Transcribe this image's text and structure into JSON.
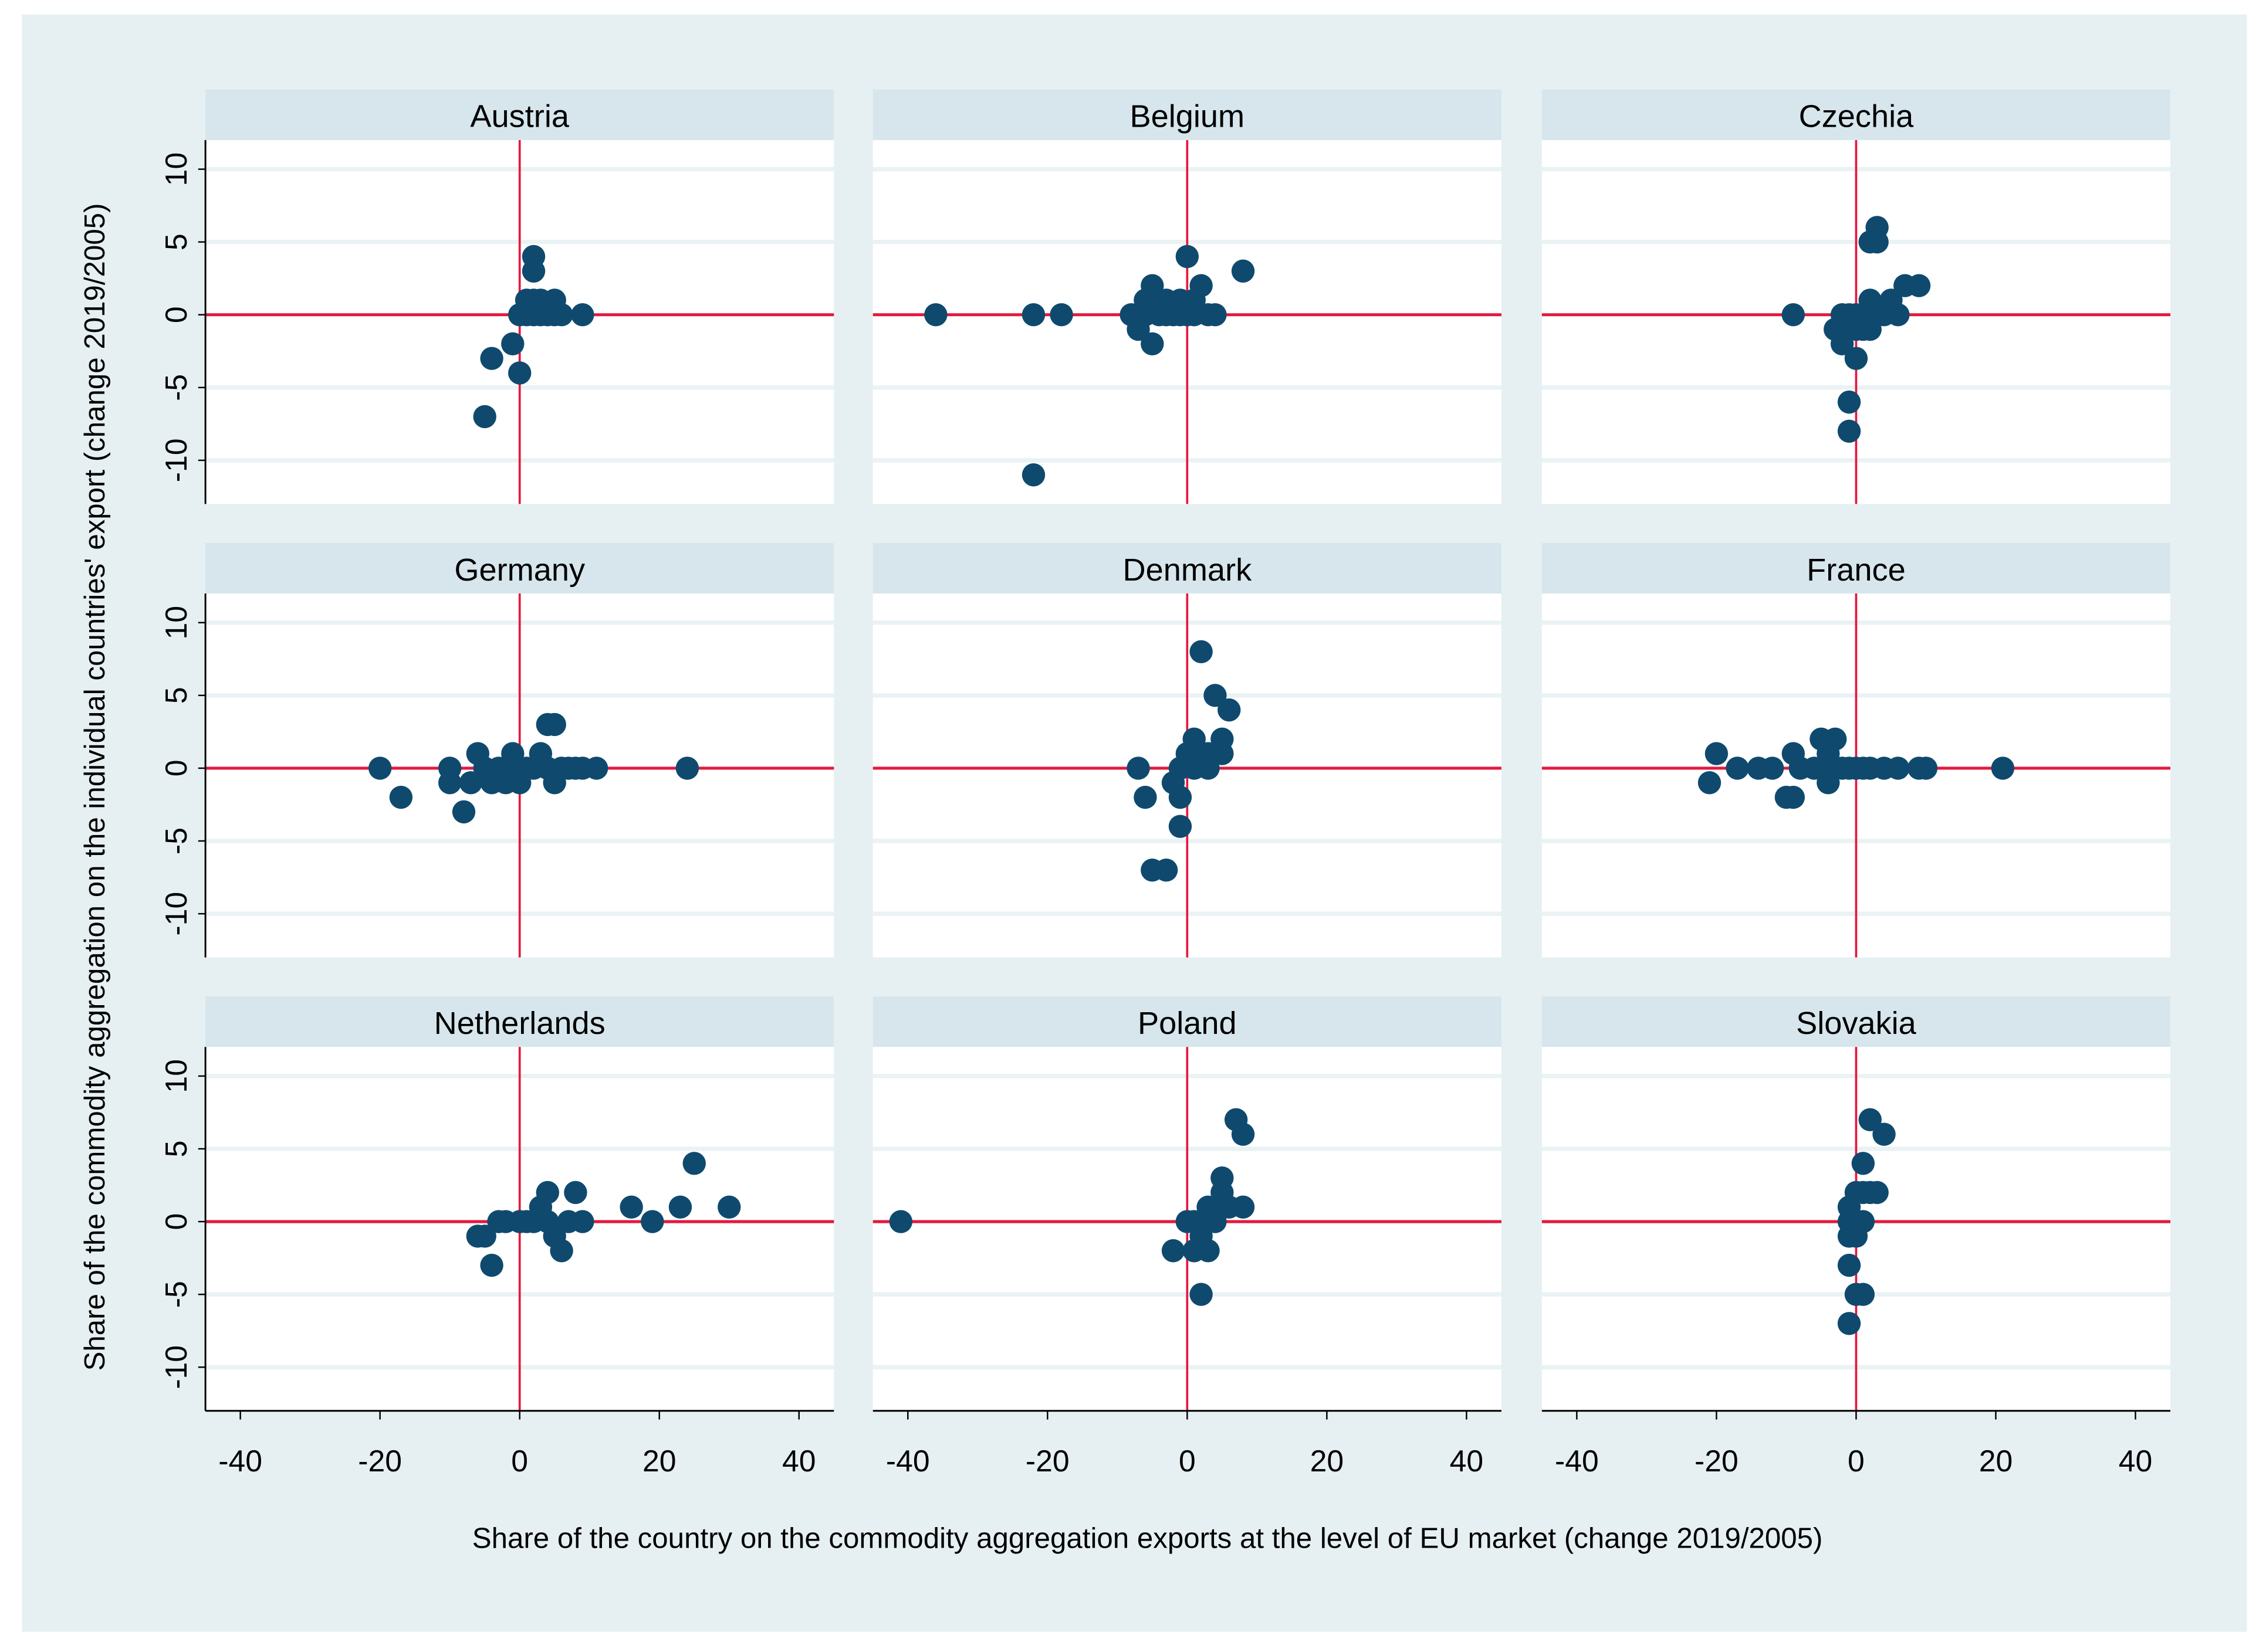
{
  "chart_data": {
    "type": "scatter",
    "xlabel": "Share of the country on the commodity aggregation exports at the level of EU market (change 2019/2005)",
    "ylabel": "Share of the commodity aggregation on the individual countries' export (change 2019/2005)",
    "xlim": [
      -45,
      45
    ],
    "ylim": [
      -13,
      12
    ],
    "xticks": [
      -40,
      -20,
      0,
      20,
      40
    ],
    "yticks": [
      10,
      5,
      0,
      -5,
      -10
    ],
    "xtick_labels": [
      "-40",
      "-20",
      "0",
      "20",
      "40"
    ],
    "ytick_labels": [
      "10",
      "5",
      "0",
      "-5",
      "-10"
    ],
    "grid": true,
    "reference_lines": {
      "x": 0,
      "y": 0
    },
    "colors": {
      "marker": "#0f4a6e",
      "refline": "#e8163c",
      "header": "#d6e6ec",
      "background": "#e6f0f2",
      "grid": "#eaf2f4"
    },
    "panels": [
      {
        "title": "Austria",
        "points": [
          [
            0,
            0
          ],
          [
            1,
            0
          ],
          [
            1,
            1
          ],
          [
            2,
            1
          ],
          [
            2,
            4
          ],
          [
            2,
            3
          ],
          [
            2,
            0
          ],
          [
            3,
            0
          ],
          [
            3,
            1
          ],
          [
            4,
            0
          ],
          [
            5,
            0
          ],
          [
            5,
            1
          ],
          [
            6,
            0
          ],
          [
            9,
            0
          ],
          [
            -1,
            -2
          ],
          [
            -4,
            -3
          ],
          [
            0,
            -4
          ],
          [
            -5,
            -7
          ]
        ]
      },
      {
        "title": "Belgium",
        "points": [
          [
            -36,
            0
          ],
          [
            -22,
            0
          ],
          [
            -18,
            0
          ],
          [
            -8,
            0
          ],
          [
            -7,
            -1
          ],
          [
            -6,
            1
          ],
          [
            -5,
            2
          ],
          [
            -5,
            -2
          ],
          [
            -4,
            0
          ],
          [
            -3,
            1
          ],
          [
            -2,
            0
          ],
          [
            -1,
            0
          ],
          [
            0,
            4
          ],
          [
            1,
            0
          ],
          [
            1,
            1
          ],
          [
            2,
            2
          ],
          [
            3,
            0
          ],
          [
            4,
            0
          ],
          [
            8,
            3
          ],
          [
            -22,
            -11
          ],
          [
            -6,
            0
          ],
          [
            0,
            0
          ],
          [
            -3,
            0
          ],
          [
            -1,
            1
          ]
        ]
      },
      {
        "title": "Czechia",
        "points": [
          [
            -9,
            0
          ],
          [
            -3,
            -1
          ],
          [
            -2,
            -2
          ],
          [
            -2,
            0
          ],
          [
            -1,
            0
          ],
          [
            -1,
            -6
          ],
          [
            -1,
            -8
          ],
          [
            0,
            -3
          ],
          [
            0,
            -1
          ],
          [
            0,
            0
          ],
          [
            1,
            0
          ],
          [
            2,
            -1
          ],
          [
            2,
            1
          ],
          [
            3,
            5
          ],
          [
            3,
            6
          ],
          [
            2,
            5
          ],
          [
            3,
            0
          ],
          [
            4,
            0
          ],
          [
            5,
            1
          ],
          [
            6,
            0
          ],
          [
            7,
            2
          ],
          [
            9,
            2
          ],
          [
            -1,
            -1
          ],
          [
            1,
            -1
          ]
        ]
      },
      {
        "title": "Germany",
        "points": [
          [
            -20,
            0
          ],
          [
            -17,
            -2
          ],
          [
            -10,
            0
          ],
          [
            -10,
            -1
          ],
          [
            -8,
            -3
          ],
          [
            -7,
            -1
          ],
          [
            -6,
            1
          ],
          [
            -5,
            0
          ],
          [
            -4,
            -1
          ],
          [
            -3,
            0
          ],
          [
            -2,
            -1
          ],
          [
            -1,
            0
          ],
          [
            -1,
            1
          ],
          [
            0,
            -1
          ],
          [
            0,
            0
          ],
          [
            1,
            0
          ],
          [
            2,
            0
          ],
          [
            3,
            1
          ],
          [
            4,
            0
          ],
          [
            4,
            3
          ],
          [
            5,
            3
          ],
          [
            5,
            -1
          ],
          [
            6,
            0
          ],
          [
            7,
            0
          ],
          [
            8,
            0
          ],
          [
            9,
            0
          ],
          [
            11,
            0
          ],
          [
            24,
            0
          ]
        ]
      },
      {
        "title": "Denmark",
        "points": [
          [
            -7,
            0
          ],
          [
            -6,
            -2
          ],
          [
            -5,
            -7
          ],
          [
            -3,
            -7
          ],
          [
            -1,
            -4
          ],
          [
            -1,
            -2
          ],
          [
            -1,
            0
          ],
          [
            0,
            1
          ],
          [
            1,
            0
          ],
          [
            1,
            2
          ],
          [
            2,
            8
          ],
          [
            3,
            0
          ],
          [
            3,
            1
          ],
          [
            4,
            5
          ],
          [
            5,
            2
          ],
          [
            5,
            1
          ],
          [
            6,
            4
          ],
          [
            -2,
            -1
          ],
          [
            2,
            1
          ]
        ]
      },
      {
        "title": "France",
        "points": [
          [
            -21,
            -1
          ],
          [
            -20,
            1
          ],
          [
            -17,
            0
          ],
          [
            -14,
            0
          ],
          [
            -12,
            0
          ],
          [
            -10,
            -2
          ],
          [
            -9,
            -2
          ],
          [
            -9,
            1
          ],
          [
            -8,
            0
          ],
          [
            -6,
            0
          ],
          [
            -5,
            2
          ],
          [
            -4,
            -1
          ],
          [
            -3,
            2
          ],
          [
            -3,
            0
          ],
          [
            -2,
            0
          ],
          [
            -1,
            0
          ],
          [
            0,
            0
          ],
          [
            1,
            0
          ],
          [
            2,
            0
          ],
          [
            4,
            0
          ],
          [
            6,
            0
          ],
          [
            9,
            0
          ],
          [
            10,
            0
          ],
          [
            21,
            0
          ],
          [
            -4,
            1
          ]
        ]
      },
      {
        "title": "Netherlands",
        "points": [
          [
            -6,
            -1
          ],
          [
            -5,
            -1
          ],
          [
            -4,
            -3
          ],
          [
            -3,
            0
          ],
          [
            -2,
            0
          ],
          [
            0,
            0
          ],
          [
            1,
            0
          ],
          [
            2,
            0
          ],
          [
            3,
            1
          ],
          [
            4,
            2
          ],
          [
            4,
            0
          ],
          [
            5,
            -1
          ],
          [
            6,
            -2
          ],
          [
            7,
            0
          ],
          [
            8,
            2
          ],
          [
            9,
            0
          ],
          [
            16,
            1
          ],
          [
            19,
            0
          ],
          [
            23,
            1
          ],
          [
            25,
            4
          ],
          [
            30,
            1
          ]
        ]
      },
      {
        "title": "Poland",
        "points": [
          [
            -41,
            0
          ],
          [
            -2,
            -2
          ],
          [
            0,
            0
          ],
          [
            1,
            0
          ],
          [
            2,
            -1
          ],
          [
            2,
            -5
          ],
          [
            3,
            -2
          ],
          [
            3,
            1
          ],
          [
            4,
            0
          ],
          [
            5,
            2
          ],
          [
            5,
            3
          ],
          [
            6,
            1
          ],
          [
            7,
            7
          ],
          [
            8,
            6
          ],
          [
            8,
            1
          ],
          [
            1,
            -2
          ],
          [
            4,
            1
          ]
        ]
      },
      {
        "title": "Slovakia",
        "points": [
          [
            -1,
            1
          ],
          [
            -1,
            0
          ],
          [
            -1,
            -1
          ],
          [
            -1,
            -3
          ],
          [
            -1,
            -7
          ],
          [
            0,
            -5
          ],
          [
            0,
            2
          ],
          [
            0,
            -1
          ],
          [
            1,
            0
          ],
          [
            1,
            2
          ],
          [
            1,
            4
          ],
          [
            1,
            -5
          ],
          [
            2,
            7
          ],
          [
            2,
            2
          ],
          [
            3,
            2
          ],
          [
            4,
            6
          ]
        ]
      }
    ]
  }
}
